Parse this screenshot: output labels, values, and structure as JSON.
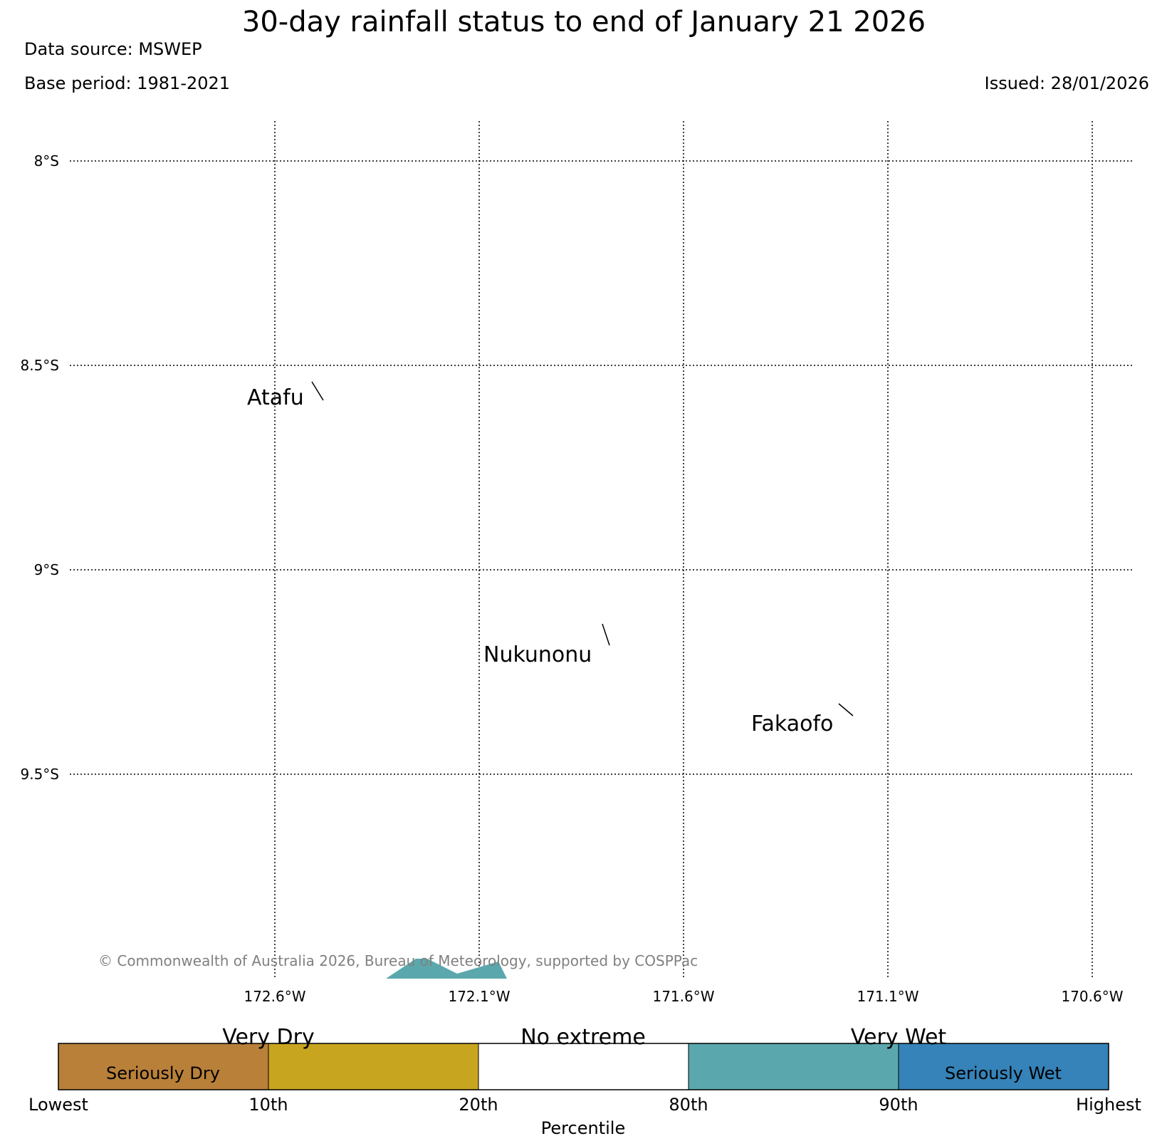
{
  "title": "30-day rainfall status to end of January 21 2026",
  "data_source": "Data source: MSWEP",
  "base_period": "Base period: 1981-2021",
  "issued": "Issued: 28/01/2026",
  "copyright": "© Commonwealth of Australia 2026, Bureau of Meteorology, supported by COSPPac",
  "map": {
    "latitude_labels": [
      "8°S",
      "8.5°S",
      "9°S",
      "9.5°S"
    ],
    "longitude_labels": [
      "172.6°W",
      "172.1°W",
      "171.6°W",
      "171.1°W",
      "170.6°W"
    ],
    "places": [
      "Atafu",
      "Nukunonu",
      "Fakaofo"
    ],
    "gridlines": "dotted",
    "shaded_area_color": "#5aa8ad"
  },
  "legend": {
    "categories_top": [
      "Very Dry",
      "No extreme",
      "Very Wet"
    ],
    "categories_inner": [
      "Seriously Dry",
      "Seriously Wet"
    ],
    "tick_labels": [
      "Lowest",
      "10th",
      "20th",
      "80th",
      "90th",
      "Highest"
    ],
    "axis_label": "Percentile",
    "colors": [
      "#b9803a",
      "#c8a51f",
      "#ffffff",
      "#5aa8ad",
      "#3583b8"
    ]
  }
}
